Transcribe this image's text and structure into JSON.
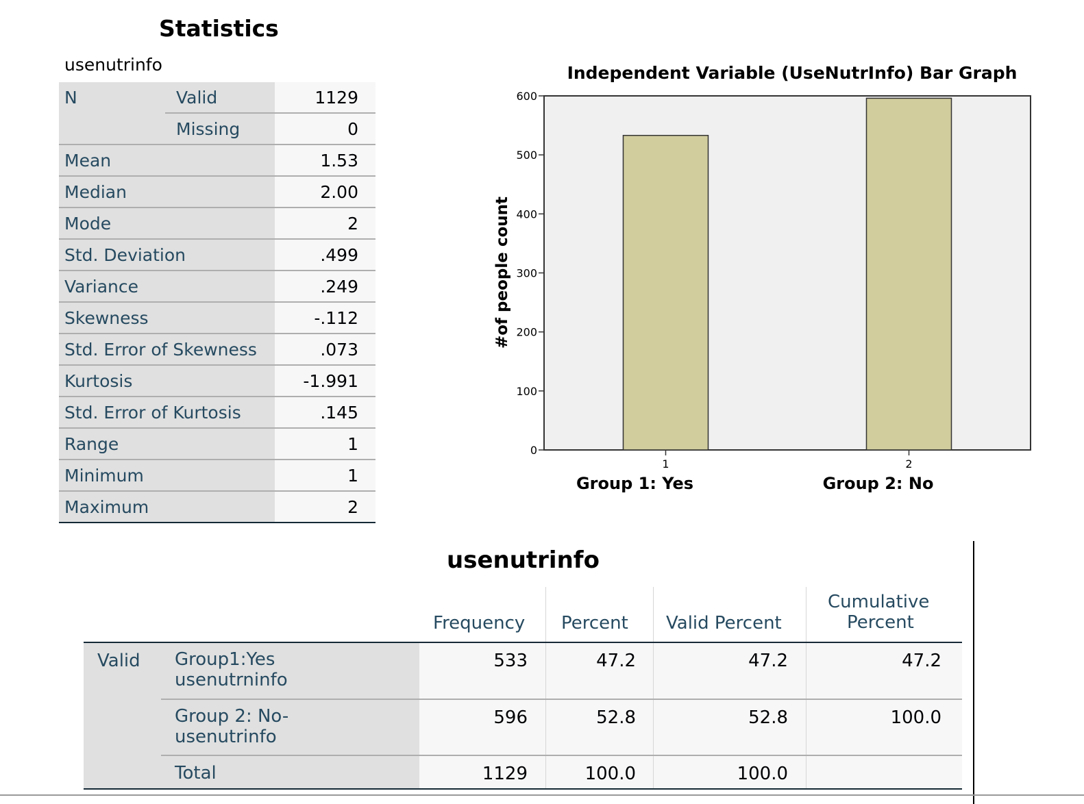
{
  "statistics": {
    "title": "Statistics",
    "variable": "usenutrinfo",
    "rows": [
      {
        "label": "N",
        "sub": "Valid",
        "value": "1129"
      },
      {
        "label": "",
        "sub": "Missing",
        "value": "0"
      },
      {
        "label": "Mean",
        "sub": "",
        "value": "1.53"
      },
      {
        "label": "Median",
        "sub": "",
        "value": "2.00"
      },
      {
        "label": "Mode",
        "sub": "",
        "value": "2"
      },
      {
        "label": "Std. Deviation",
        "sub": "",
        "value": ".499"
      },
      {
        "label": "Variance",
        "sub": "",
        "value": ".249"
      },
      {
        "label": "Skewness",
        "sub": "",
        "value": "-.112"
      },
      {
        "label": "Std. Error of Skewness",
        "sub": "",
        "value": ".073"
      },
      {
        "label": "Kurtosis",
        "sub": "",
        "value": "-1.991"
      },
      {
        "label": "Std. Error of Kurtosis",
        "sub": "",
        "value": ".145"
      },
      {
        "label": "Range",
        "sub": "",
        "value": "1"
      },
      {
        "label": "Minimum",
        "sub": "",
        "value": "1"
      },
      {
        "label": "Maximum",
        "sub": "",
        "value": "2"
      }
    ]
  },
  "chart_data": {
    "type": "bar",
    "title": "Independent Variable (UseNutrInfo) Bar Graph",
    "ylabel": "#of people count",
    "xlabel": "",
    "categories": [
      "1",
      "2"
    ],
    "category_labels": [
      "Group 1: Yes",
      "Group 2: No"
    ],
    "values": [
      533,
      596
    ],
    "ylim": [
      0,
      600
    ],
    "yticks": [
      0,
      100,
      200,
      300,
      400,
      500,
      600
    ],
    "grid": false,
    "bar_color": "#d2cd9d",
    "plot_background": "#f0f0f0"
  },
  "frequency": {
    "title": "usenutrinfo",
    "headers": {
      "frequency": "Frequency",
      "percent": "Percent",
      "valid_percent": "Valid Percent",
      "cumulative_line1": "Cumulative",
      "cumulative_line2": "Percent"
    },
    "group_label": "Valid",
    "rows": [
      {
        "label1": "Group1:Yes",
        "label2": "usenutrninfo",
        "frequency": "533",
        "percent": "47.2",
        "valid_percent": "47.2",
        "cumulative": "47.2"
      },
      {
        "label1": "Group 2: No-",
        "label2": "usenutrinfo",
        "frequency": "596",
        "percent": "52.8",
        "valid_percent": "52.8",
        "cumulative": "100.0"
      },
      {
        "label1": "Total",
        "label2": "",
        "frequency": "1129",
        "percent": "100.0",
        "valid_percent": "100.0",
        "cumulative": ""
      }
    ]
  }
}
